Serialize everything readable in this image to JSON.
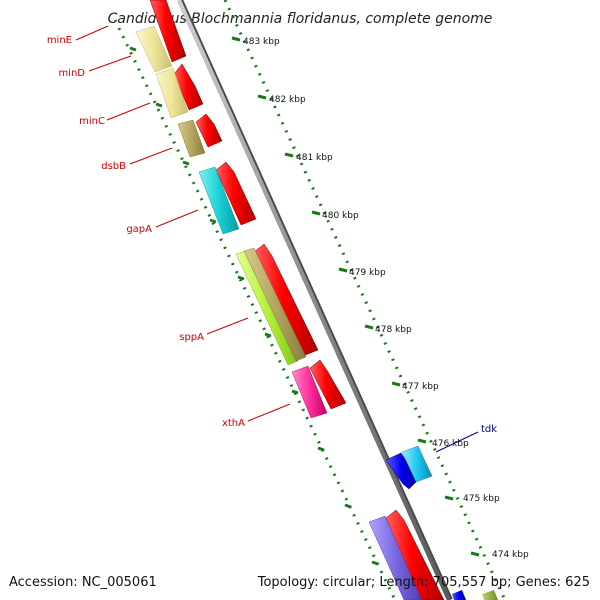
{
  "title": "Candidatus Blochmannia floridanus, complete genome",
  "footer": {
    "accession": "Accession: NC_005061",
    "summary": "Topology: circular; Length: 705,557 bp; Genes: 625"
  },
  "ticks": [
    {
      "label": "483 kbp"
    },
    {
      "label": "482 kbp"
    },
    {
      "label": "481 kbp"
    },
    {
      "label": "480 kbp"
    },
    {
      "label": "479 kbp"
    },
    {
      "label": "478 kbp"
    },
    {
      "label": "477 kbp"
    },
    {
      "label": "476 kbp"
    },
    {
      "label": "475 kbp"
    },
    {
      "label": "474 kbp"
    }
  ],
  "genes": [
    {
      "name": "minE",
      "color": "#cc0000"
    },
    {
      "name": "minD",
      "color": "#cc0000"
    },
    {
      "name": "minC",
      "color": "#cc0000"
    },
    {
      "name": "dsbB",
      "color": "#cc0000"
    },
    {
      "name": "gapA",
      "color": "#cc0000"
    },
    {
      "name": "sppA",
      "color": "#cc0000"
    },
    {
      "name": "xthA",
      "color": "#cc0000"
    },
    {
      "name": "tdk",
      "color": "#000099"
    }
  ],
  "colors": {
    "backbone": "#8a8a8a",
    "tick": "#1a7a1a",
    "cds": "#ff0000"
  }
}
